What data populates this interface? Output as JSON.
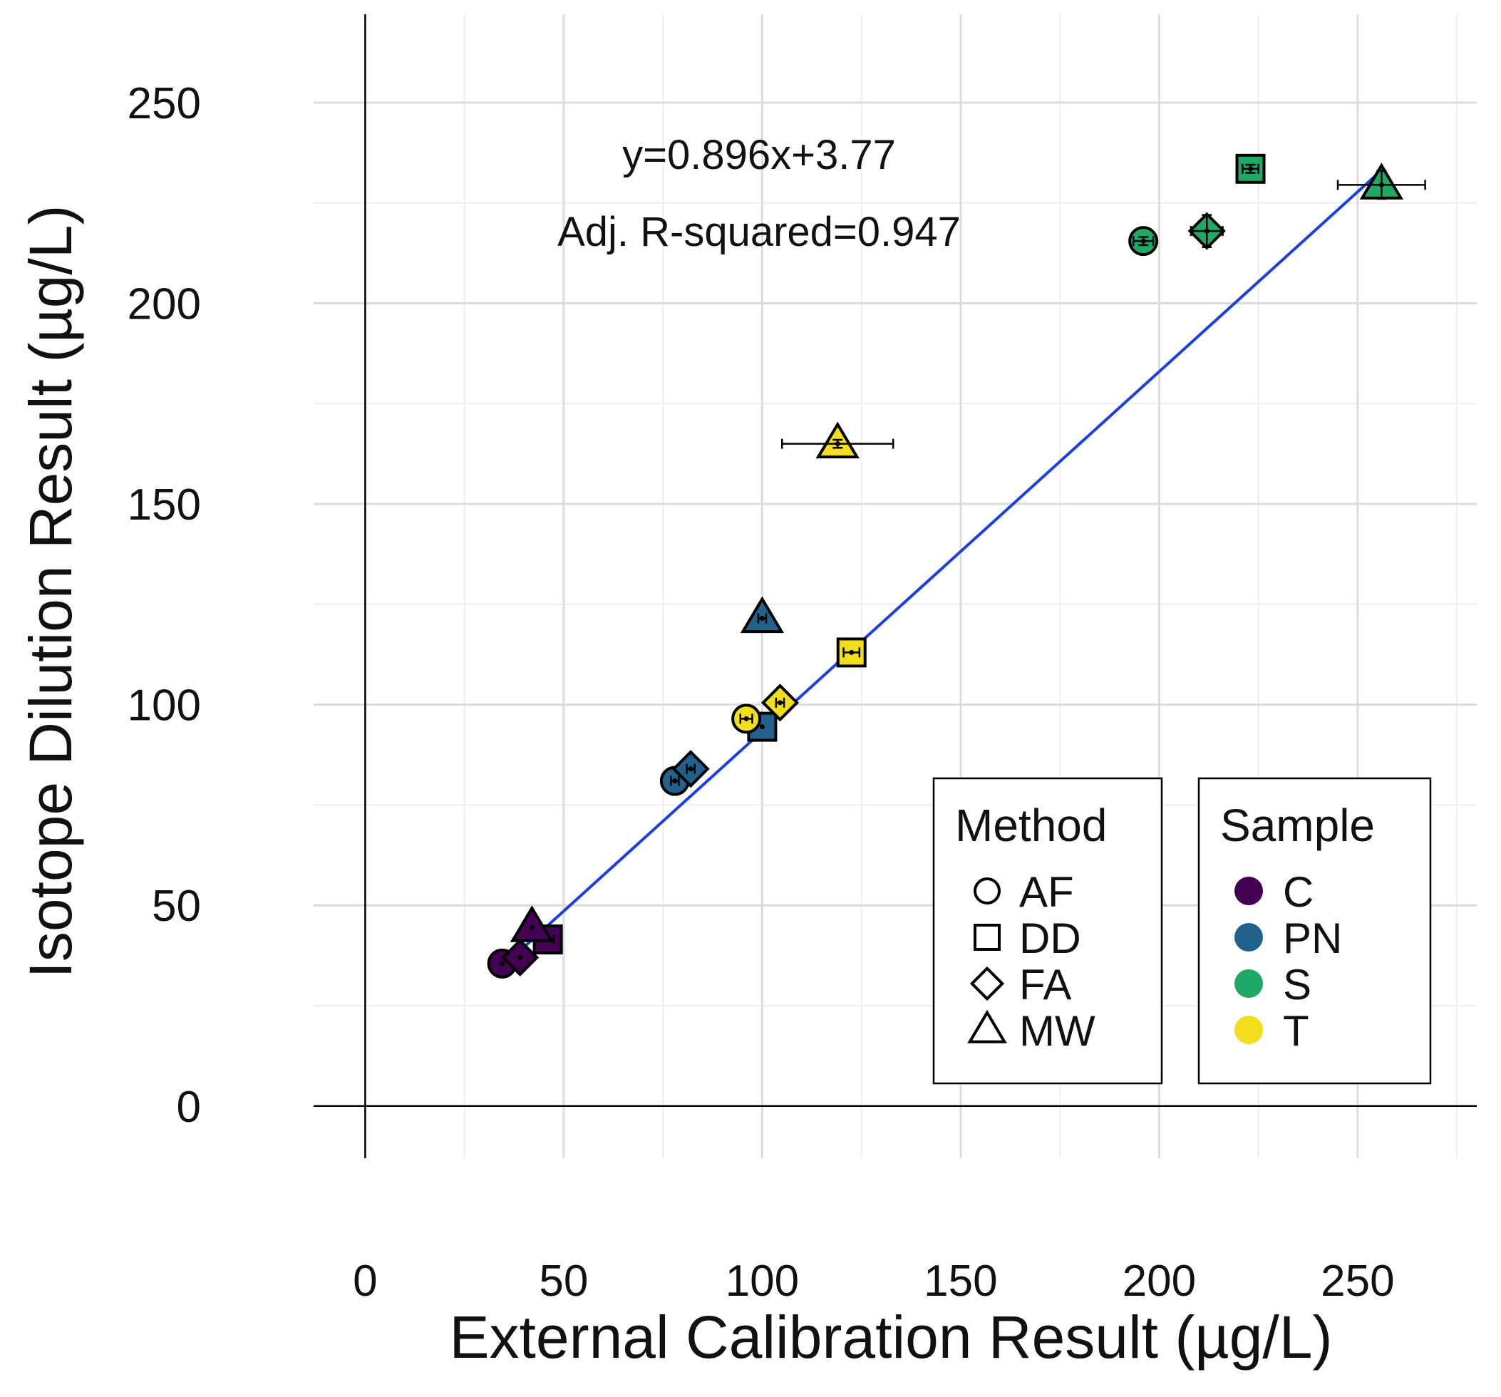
{
  "chart_data": {
    "type": "scatter",
    "title": "",
    "xlabel": "External Calibration Result (µg/L)",
    "ylabel": "Isotope Dilution Result (µg/L)",
    "xlim": [
      -13,
      280
    ],
    "ylim": [
      -13,
      272
    ],
    "x_ticks": [
      0,
      50,
      100,
      150,
      200,
      250
    ],
    "y_ticks": [
      0,
      50,
      100,
      150,
      200,
      250
    ],
    "grid": true,
    "fit_line": {
      "slope": 0.896,
      "intercept": 3.77,
      "x_range": [
        34.5,
        256
      ],
      "equation_label": "y=0.896x+3.77",
      "r2_label": "Adj. R-squared=0.947"
    },
    "method_legend": {
      "title": "Method",
      "items": [
        {
          "label": "AF",
          "shape": "circle"
        },
        {
          "label": "DD",
          "shape": "square"
        },
        {
          "label": "FA",
          "shape": "diamond"
        },
        {
          "label": "MW",
          "shape": "triangle"
        }
      ]
    },
    "sample_legend": {
      "title": "Sample",
      "items": [
        {
          "label": "C",
          "color": "#440154"
        },
        {
          "label": "PN",
          "color": "#21618C"
        },
        {
          "label": "S",
          "color": "#1FA866"
        },
        {
          "label": "T",
          "color": "#F2DE1A"
        }
      ]
    },
    "points": [
      {
        "method": "AF",
        "sample": "C",
        "x": 34.5,
        "y": 35.5,
        "xerr": 0,
        "yerr": 0
      },
      {
        "method": "FA",
        "sample": "C",
        "x": 39,
        "y": 37,
        "xerr": 0,
        "yerr": 0
      },
      {
        "method": "DD",
        "sample": "C",
        "x": 46,
        "y": 41.5,
        "xerr": 1.5,
        "yerr": 0
      },
      {
        "method": "MW",
        "sample": "C",
        "x": 42,
        "y": 44.5,
        "xerr": 0,
        "yerr": 0
      },
      {
        "method": "AF",
        "sample": "PN",
        "x": 78,
        "y": 81,
        "xerr": 1,
        "yerr": 0
      },
      {
        "method": "FA",
        "sample": "PN",
        "x": 82,
        "y": 84,
        "xerr": 1,
        "yerr": 0
      },
      {
        "method": "DD",
        "sample": "PN",
        "x": 100,
        "y": 94.5,
        "xerr": 0,
        "yerr": 0
      },
      {
        "method": "MW",
        "sample": "PN",
        "x": 100,
        "y": 121.5,
        "xerr": 1,
        "yerr": 0
      },
      {
        "method": "AF",
        "sample": "T",
        "x": 96,
        "y": 96.5,
        "xerr": 1.5,
        "yerr": 0
      },
      {
        "method": "FA",
        "sample": "T",
        "x": 104.5,
        "y": 100.5,
        "xerr": 1,
        "yerr": 0
      },
      {
        "method": "DD",
        "sample": "T",
        "x": 122.5,
        "y": 113,
        "xerr": 2,
        "yerr": 0
      },
      {
        "method": "MW",
        "sample": "T",
        "x": 119,
        "y": 165,
        "xerr": 14,
        "yerr": 1
      },
      {
        "method": "AF",
        "sample": "S",
        "x": 196,
        "y": 215.5,
        "xerr": 2.5,
        "yerr": 1
      },
      {
        "method": "FA",
        "sample": "S",
        "x": 212,
        "y": 218,
        "xerr": 4,
        "yerr": 4
      },
      {
        "method": "DD",
        "sample": "S",
        "x": 223,
        "y": 233.5,
        "xerr": 2,
        "yerr": 1
      },
      {
        "method": "MW",
        "sample": "S",
        "x": 256,
        "y": 229.5,
        "xerr": 11,
        "yerr": 3.5
      }
    ]
  }
}
